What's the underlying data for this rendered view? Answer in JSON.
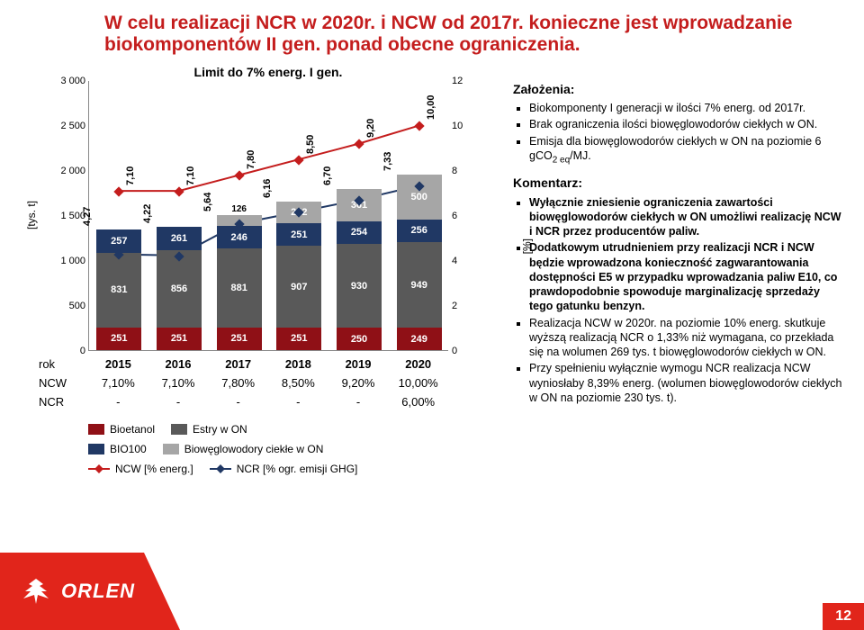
{
  "title": "W celu realizacji NCR w 2020r. i NCW od 2017r. konieczne jest wprowadzanie biokomponentów II gen. ponad obecne ograniczenia.",
  "chart": {
    "type": "stacked-bar+dual-line",
    "inner_title": "Limit do 7% energ. I gen.",
    "y_label": "[tys. t]",
    "y2_label": "[%]",
    "y_max": 3000,
    "y_tick_step": 500,
    "y2_max": 12,
    "y2_tick_step": 2,
    "y_ticks": [
      "0",
      "500",
      "1 000",
      "1 500",
      "2 000",
      "2 500",
      "3 000"
    ],
    "y2_ticks": [
      "0",
      "2",
      "4",
      "6",
      "8",
      "10",
      "12"
    ],
    "categories": [
      "2015",
      "2016",
      "2017",
      "2018",
      "2019",
      "2020"
    ],
    "stack_colors": {
      "bioetanol": "#8f1016",
      "estry": "#595959",
      "bio100": "#203864",
      "ciekle": "#a6a6a6"
    },
    "series": [
      {
        "bioetanol": 251,
        "estry": 831,
        "bio100": 257,
        "ciekle": 0,
        "top_left": "4,27",
        "top_right": "7,10"
      },
      {
        "bioetanol": 251,
        "estry": 856,
        "bio100": 261,
        "ciekle": 0,
        "top_left": "4,22",
        "top_right": "7,10"
      },
      {
        "bioetanol": 251,
        "estry": 881,
        "bio100": 246,
        "ciekle": 126,
        "top_left": "5,64",
        "top_right": "7,80"
      },
      {
        "bioetanol": 251,
        "estry": 907,
        "bio100": 251,
        "ciekle": 242,
        "top_left": "6,16",
        "top_right": "8,50"
      },
      {
        "bioetanol": 250,
        "estry": 930,
        "bio100": 254,
        "ciekle": 361,
        "top_left": "6,70",
        "top_right": "9,20"
      },
      {
        "bioetanol": 249,
        "estry": 949,
        "bio100": 256,
        "ciekle": 500,
        "top_left": "7,33",
        "top_right": "10,00"
      }
    ],
    "line_ncw": {
      "color": "#c41d1d",
      "values": [
        7.1,
        7.1,
        7.8,
        8.5,
        9.2,
        10.0
      ]
    },
    "line_ncr": {
      "color": "#203864",
      "values": [
        4.27,
        4.22,
        5.64,
        6.16,
        6.7,
        7.33
      ]
    },
    "row_labels": {
      "rok": "rok",
      "ncw": "NCW",
      "ncr": "NCR"
    },
    "rows": {
      "rok": [
        "2015",
        "2016",
        "2017",
        "2018",
        "2019",
        "2020"
      ],
      "ncw": [
        "7,10%",
        "7,10%",
        "7,80%",
        "8,50%",
        "9,20%",
        "10,00%"
      ],
      "ncr": [
        "-",
        "-",
        "-",
        "-",
        "-",
        "6,00%"
      ]
    },
    "legend": {
      "bioetanol": "Bioetanol",
      "estry": "Estry w ON",
      "bio100": "BIO100",
      "ciekle": "Biowęglowodory ciekłe w ON",
      "ncw_line": "NCW [% energ.]",
      "ncr_line": "NCR [% ogr. emisji GHG]"
    }
  },
  "notes": {
    "h1": "Założenia:",
    "a1": "Biokomponenty I generacji w ilości 7% energ. od 2017r.",
    "a2": "Brak ograniczenia ilości biowęglowodorów ciekłych  w ON.",
    "a3_pre": "Emisja dla biowęglowodorów ciekłych w ON na poziomie 6 gCO",
    "a3_sub": "2 eq",
    "a3_post": "/MJ.",
    "h2": "Komentarz:",
    "b1": "Wyłącznie zniesienie ograniczenia zawartości biowęglowodorów ciekłych w ON umożliwi realizację NCW i NCR przez producentów paliw.",
    "b2": "Dodatkowym utrudnieniem przy realizacji NCR i NCW będzie wprowadzona konieczność zagwarantowania dostępności E5 w przypadku wprowadzania paliw E10, co prawdopodobnie spowoduje marginalizację sprzedaży tego gatunku benzyn.",
    "b3": "Realizacja NCW w 2020r. na poziomie 10% energ. skutkuje wyższą realizacją NCR o 1,33% niż wymagana, co przekłada się na wolumen 269 tys. t biowęglowodorów ciekłych w ON.",
    "b4": "Przy spełnieniu wyłącznie wymogu NCR realizacja NCW wyniosłaby 8,39% energ. (wolumen biowęglowodorów ciekłych w ON na poziomie 230 tys. t)."
  },
  "brand": "ORLEN",
  "page": "12"
}
